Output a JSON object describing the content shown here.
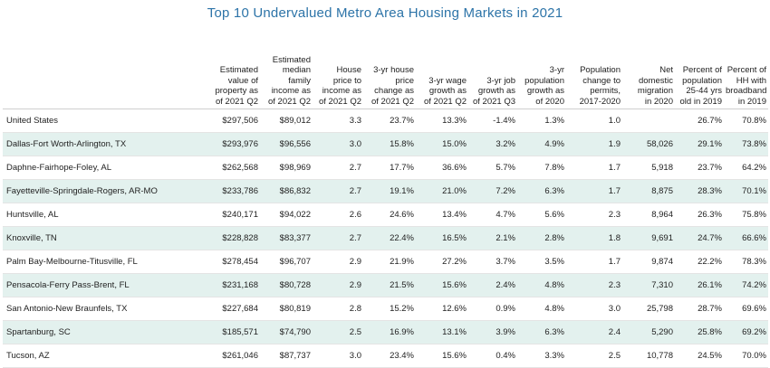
{
  "chart_data": {
    "type": "table",
    "title": "Top 10 Undervalued Metro Area Housing Markets in 2021",
    "columns": [
      "",
      "Estimated value of property as of 2021 Q2",
      "Estimated median family income as of 2021 Q2",
      "House price to income as of 2021 Q2",
      "3-yr house price change as of 2021 Q2",
      "3-yr wage growth as of 2021 Q2",
      "3-yr job growth as of 2021 Q3",
      "3-yr population growth as of 2020",
      "Population change to permits, 2017-2020",
      "Net domestic migration in 2020",
      "Percent of population 25-44 yrs old in 2019",
      "Percent of HH with broadband in 2019"
    ],
    "rows": [
      [
        "United States",
        "$297,506",
        "$89,012",
        "3.3",
        "23.7%",
        "13.3%",
        "-1.4%",
        "1.3%",
        "1.0",
        "",
        "26.7%",
        "70.8%"
      ],
      [
        "Dallas-Fort Worth-Arlington, TX",
        "$293,976",
        "$96,556",
        "3.0",
        "15.8%",
        "15.0%",
        "3.2%",
        "4.9%",
        "1.9",
        "58,026",
        "29.1%",
        "73.8%"
      ],
      [
        "Daphne-Fairhope-Foley, AL",
        "$262,568",
        "$98,969",
        "2.7",
        "17.7%",
        "36.6%",
        "5.7%",
        "7.8%",
        "1.7",
        "5,918",
        "23.7%",
        "64.2%"
      ],
      [
        "Fayetteville-Springdale-Rogers, AR-MO",
        "$233,786",
        "$86,832",
        "2.7",
        "19.1%",
        "21.0%",
        "7.2%",
        "6.3%",
        "1.7",
        "8,875",
        "28.3%",
        "70.1%"
      ],
      [
        "Huntsville, AL",
        "$240,171",
        "$94,022",
        "2.6",
        "24.6%",
        "13.4%",
        "4.7%",
        "5.6%",
        "2.3",
        "8,964",
        "26.3%",
        "75.8%"
      ],
      [
        "Knoxville, TN",
        "$228,828",
        "$83,377",
        "2.7",
        "22.4%",
        "16.5%",
        "2.1%",
        "2.8%",
        "1.8",
        "9,691",
        "24.7%",
        "66.6%"
      ],
      [
        "Palm Bay-Melbourne-Titusville, FL",
        "$278,454",
        "$96,707",
        "2.9",
        "21.9%",
        "27.2%",
        "3.7%",
        "3.5%",
        "1.7",
        "9,874",
        "22.2%",
        "78.3%"
      ],
      [
        "Pensacola-Ferry Pass-Brent, FL",
        "$231,168",
        "$80,728",
        "2.9",
        "21.5%",
        "15.6%",
        "2.4%",
        "4.8%",
        "2.3",
        "7,310",
        "26.1%",
        "74.2%"
      ],
      [
        "San Antonio-New Braunfels, TX",
        "$227,684",
        "$80,819",
        "2.8",
        "15.2%",
        "12.6%",
        "0.9%",
        "4.8%",
        "3.0",
        "25,798",
        "28.7%",
        "69.6%"
      ],
      [
        "Spartanburg, SC",
        "$185,571",
        "$74,790",
        "2.5",
        "16.9%",
        "13.1%",
        "3.9%",
        "6.3%",
        "2.4",
        "5,290",
        "25.8%",
        "69.2%"
      ],
      [
        "Tucson, AZ",
        "$261,046",
        "$87,737",
        "3.0",
        "23.4%",
        "15.6%",
        "0.4%",
        "3.3%",
        "2.5",
        "10,778",
        "24.5%",
        "70.0%"
      ]
    ],
    "header_lines": [
      [],
      [
        "Estimated",
        "value of",
        "property as",
        "of 2021 Q2"
      ],
      [
        "Estimated",
        "median",
        "family",
        "income as",
        "of 2021 Q2"
      ],
      [
        "House",
        "price to",
        "income as",
        "of 2021 Q2"
      ],
      [
        "3-yr house",
        "price",
        "change as",
        "of 2021 Q2"
      ],
      [
        "3-yr wage",
        "growth as",
        "of 2021 Q2"
      ],
      [
        "3-yr job",
        "growth as",
        "of 2021 Q3"
      ],
      [
        "3-yr",
        "population",
        "growth as",
        "of 2020"
      ],
      [
        "Population",
        "change to",
        "permits,",
        "2017-2020"
      ],
      [
        "Net",
        "domestic",
        "migration",
        "in 2020"
      ],
      [
        "Percent of",
        "population",
        "25-44 yrs",
        "old in 2019"
      ],
      [
        "Percent of",
        "HH with",
        "broadband",
        "in 2019"
      ]
    ],
    "shaded_row_color": "#e3f1ee",
    "title_color": "#2d74a8"
  }
}
